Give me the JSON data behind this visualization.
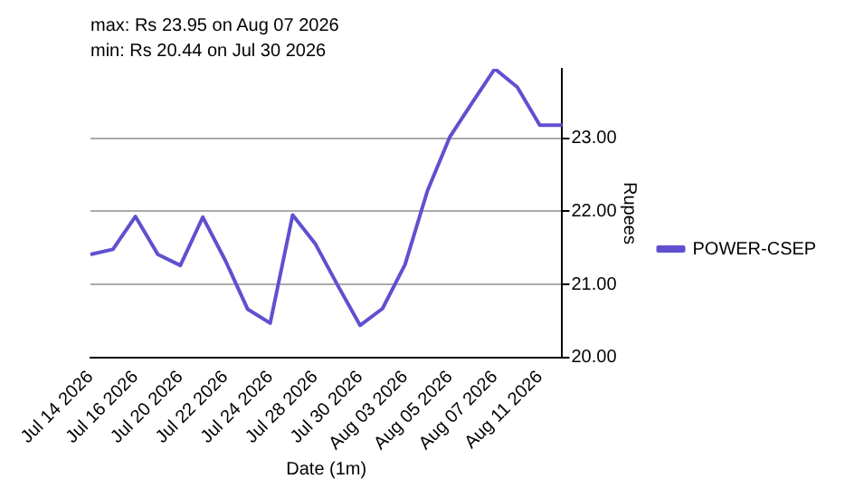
{
  "chart_data": {
    "type": "line",
    "title": "max: Rs 23.95 on Aug 07 2026",
    "subtitle": "min: Rs 20.44 on Jul 30 2026",
    "xlabel": "Date (1m)",
    "ylabel": "Rupees",
    "categories": [
      "Jul 14 2026",
      null,
      "Jul 16 2026",
      null,
      "Jul 20 2026",
      null,
      "Jul 22 2026",
      null,
      "Jul 24 2026",
      null,
      "Jul 28 2026",
      null,
      "Jul 30 2026",
      null,
      "Aug 03 2026",
      null,
      "Aug 05 2026",
      null,
      "Aug 07 2026",
      null,
      "Aug 11 2026",
      null
    ],
    "series": [
      {
        "name": "POWER-CSEP",
        "color": "#6050d0",
        "values": [
          21.41,
          21.48,
          21.93,
          21.41,
          21.26,
          21.92,
          21.33,
          20.66,
          20.47,
          21.95,
          21.56,
          20.99,
          20.44,
          20.67,
          21.27,
          22.28,
          23.02,
          23.49,
          23.95,
          23.7,
          23.18,
          23.18
        ]
      }
    ],
    "ylim": [
      20,
      23.95
    ],
    "yticks": [
      {
        "value": 20,
        "label": "20.00"
      },
      {
        "value": 21,
        "label": "21.00"
      },
      {
        "value": 22,
        "label": "22.00"
      },
      {
        "value": 23,
        "label": "23.00"
      }
    ],
    "grid": "y",
    "legend": "right",
    "marker": "none",
    "line_style": "solid"
  }
}
